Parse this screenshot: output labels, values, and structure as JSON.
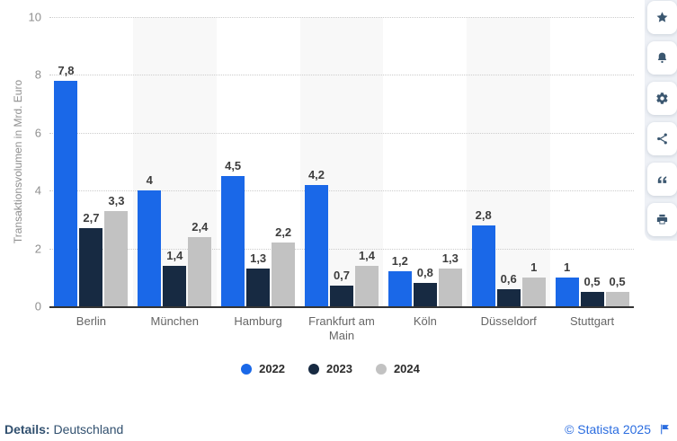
{
  "chart_data": {
    "type": "bar",
    "title": "",
    "categories": [
      "Berlin",
      "München",
      "Hamburg",
      "Frankfurt am Main",
      "Köln",
      "Düsseldorf",
      "Stuttgart"
    ],
    "series": [
      {
        "name": "2022",
        "color": "#1a68e8",
        "values": [
          7.8,
          4,
          4.5,
          4.2,
          1.2,
          2.8,
          1
        ],
        "labels": [
          "7,8",
          "4",
          "4,5",
          "4,2",
          "1,2",
          "2,8",
          "1"
        ]
      },
      {
        "name": "2023",
        "color": "#172a42",
        "values": [
          2.7,
          1.4,
          1.3,
          0.7,
          0.8,
          0.6,
          0.5
        ],
        "labels": [
          "2,7",
          "1,4",
          "1,3",
          "0,7",
          "0,8",
          "0,6",
          "0,5"
        ]
      },
      {
        "name": "2024",
        "color": "#c2c2c2",
        "values": [
          3.3,
          2.4,
          2.2,
          1.4,
          1.3,
          1,
          0.5
        ],
        "labels": [
          "3,3",
          "2,4",
          "2,2",
          "1,4",
          "1,3",
          "1",
          "0,5"
        ]
      }
    ],
    "xlabel": "",
    "ylabel": "Transaktionsvolumen in Mrd. Euro",
    "ylim": [
      0,
      10
    ],
    "yticks": [
      0,
      2,
      4,
      6,
      8,
      10
    ],
    "grid": "horizontal-dotted",
    "legend_position": "bottom",
    "striped_category_indices": [
      1,
      3,
      5
    ],
    "stripe_color": "#f8f8f8"
  },
  "sidebar": {
    "icons": [
      "star",
      "bell",
      "gear",
      "share",
      "quote",
      "printer"
    ]
  },
  "footer": {
    "details_label": "Details:",
    "details_value": " Deutschland",
    "copyright": "© Statista 2025"
  },
  "colors": {
    "axis_line": "#333333",
    "gridline": "#cccccc",
    "tick_text": "#8f8f8f",
    "category_text": "#666666",
    "value_label_text": "#3d3d3d",
    "sidebar_bg": "#eef1f6",
    "sidebar_icon": "#3b5770",
    "details_text": "#31506f",
    "statista_blue": "#2b6de0"
  }
}
